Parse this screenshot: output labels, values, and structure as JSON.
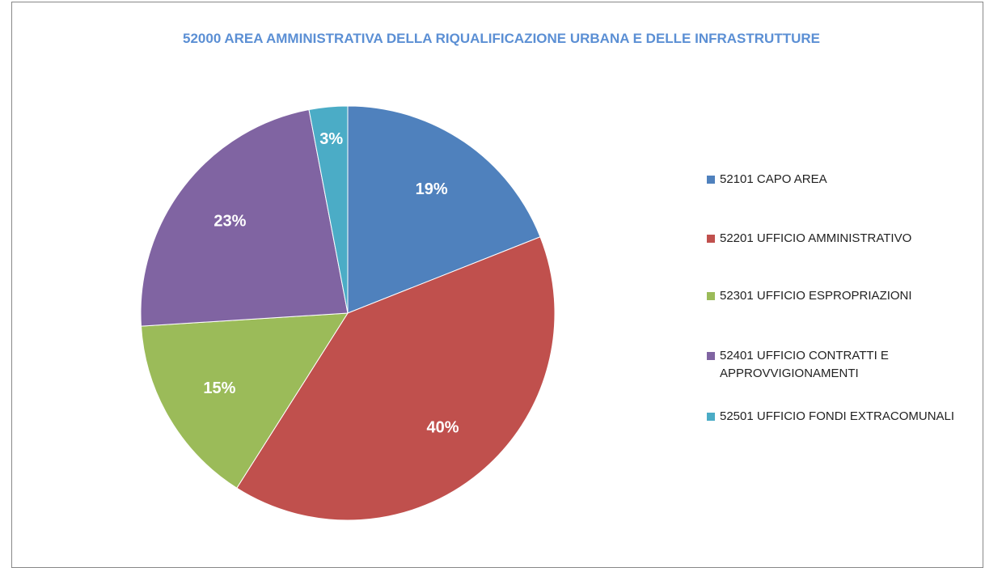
{
  "chart_data": {
    "type": "pie",
    "title": "52000 AREA AMMINISTRATIVA DELLA RIQUALIFICAZIONE URBANA E DELLE INFRASTRUTTURE",
    "categories": [
      "52101 CAPO AREA",
      "52201 UFFICIO AMMINISTRATIVO",
      "52301 UFFICIO ESPROPRIAZIONI",
      "52401 UFFICIO CONTRATTI E APPROVVIGIONAMENTI",
      "52501 UFFICIO FONDI EXTRACOMUNALI"
    ],
    "values": [
      19,
      40,
      15,
      23,
      3
    ],
    "value_labels": [
      "19%",
      "40%",
      "15%",
      "23%",
      "3%"
    ],
    "colors": [
      "#4f81bd",
      "#c0504d",
      "#9bbb59",
      "#8064a2",
      "#4bacc6"
    ],
    "legend": "right"
  }
}
